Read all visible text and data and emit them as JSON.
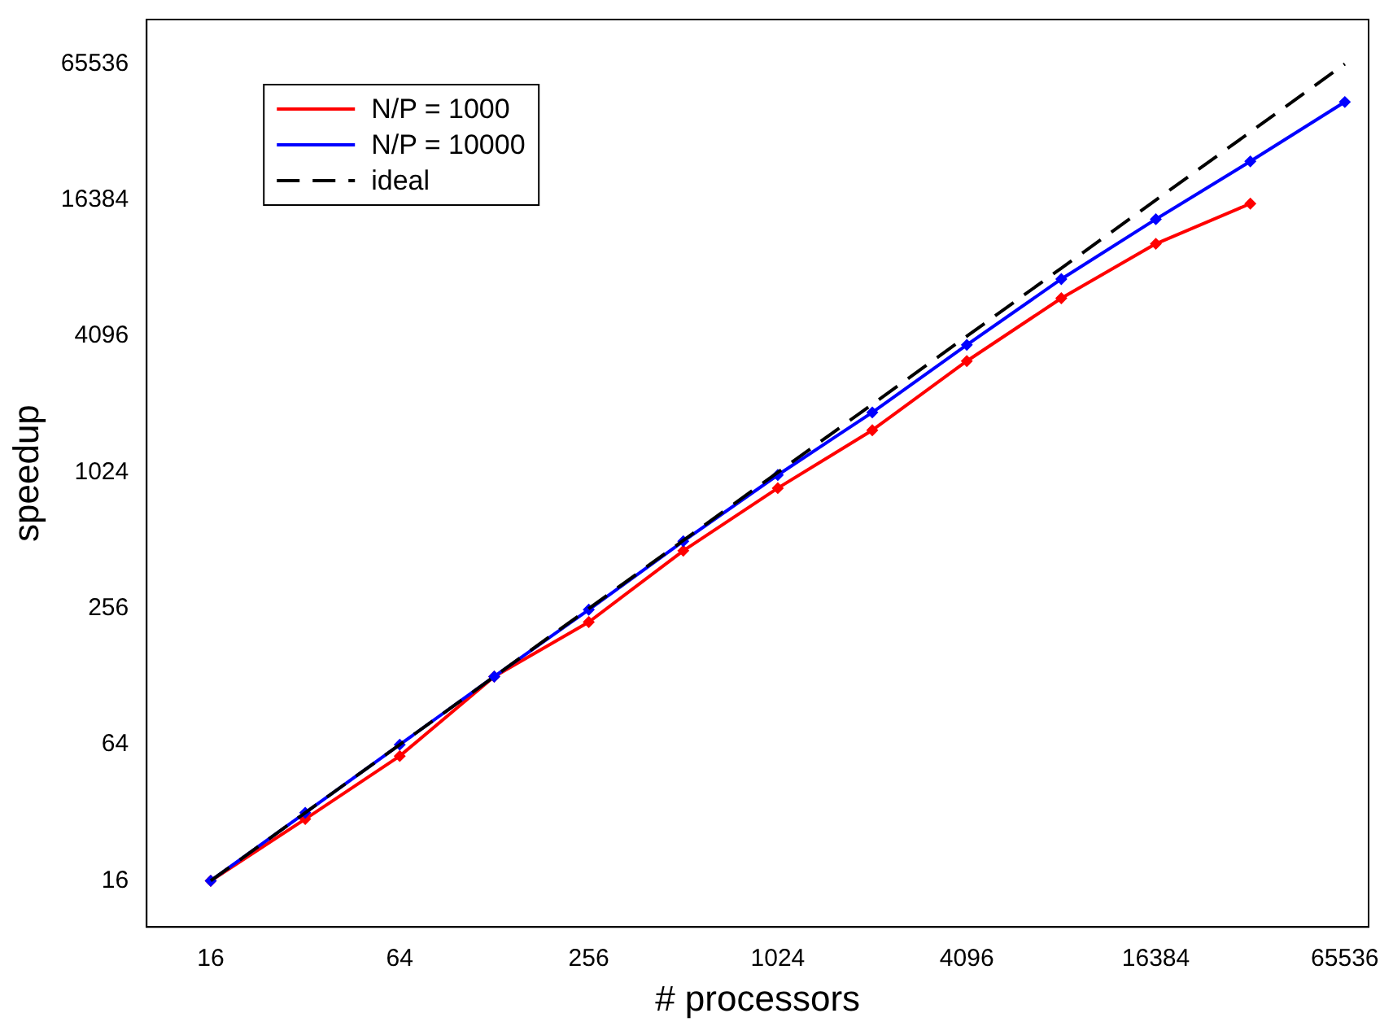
{
  "chart_data": {
    "type": "line",
    "xlabel": "# processors",
    "ylabel": "speedup",
    "x": [
      16,
      32,
      64,
      128,
      256,
      512,
      1024,
      2048,
      4096,
      8192,
      16384,
      32768,
      65536
    ],
    "series": [
      {
        "name": "N/P = 1000",
        "color": "#ff0000",
        "values": [
          16,
          30,
          57,
          128,
          223,
          461,
          872,
          1573,
          3181,
          6032,
          10500,
          15800,
          null
        ]
      },
      {
        "name": "N/P = 10000",
        "color": "#0000ff",
        "values": [
          16,
          32,
          64,
          128,
          253,
          508,
          997,
          1885,
          3750,
          7330,
          13480,
          24300,
          44500
        ]
      },
      {
        "name": "ideal",
        "color": "#000000",
        "marker": "none",
        "line_style": "dashed",
        "values": [
          16,
          32,
          64,
          128,
          256,
          512,
          1024,
          2048,
          4096,
          8192,
          16384,
          32768,
          65536
        ]
      }
    ],
    "log": "xy",
    "xlim": [
      10,
      78000
    ],
    "ylim": [
      10,
      103000
    ],
    "xticks": [
      16,
      64,
      256,
      1024,
      4096,
      16384,
      65536
    ],
    "yticks": [
      16,
      64,
      256,
      1024,
      4096,
      16384,
      65536
    ],
    "grid": false,
    "legend": "top left",
    "marker": "diamond",
    "line_style": "solid"
  }
}
